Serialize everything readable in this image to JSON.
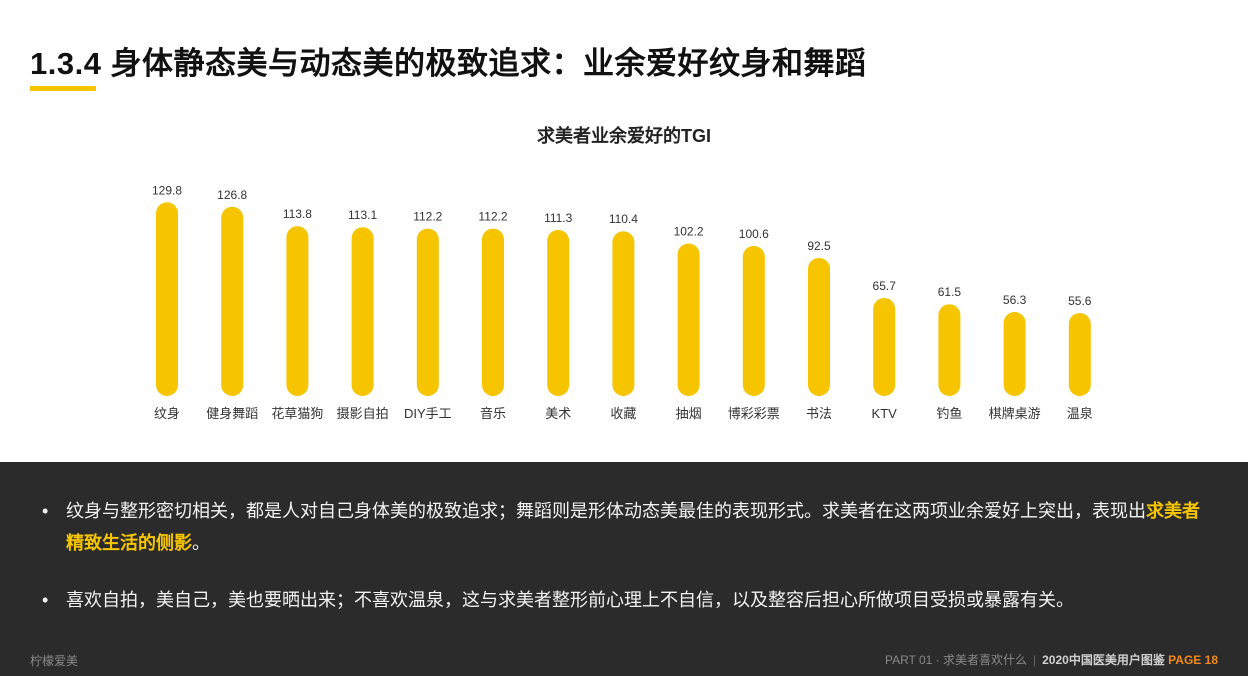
{
  "page": {
    "title": "1.3.4 身体静态美与动态美的极致追求：业余爱好纹身和舞蹈"
  },
  "chart_data": {
    "type": "bar",
    "title": "求美者业余爱好的TGI",
    "categories": [
      "纹身",
      "健身舞蹈",
      "花草猫狗",
      "摄影自拍",
      "DIY手工",
      "音乐",
      "美术",
      "收藏",
      "抽烟",
      "博彩彩票",
      "书法",
      "KTV",
      "钓鱼",
      "棋牌桌游",
      "温泉"
    ],
    "values": [
      129.8,
      126.8,
      113.8,
      113.1,
      112.2,
      112.2,
      111.3,
      110.4,
      102.2,
      100.6,
      92.5,
      65.7,
      61.5,
      56.3,
      55.6
    ],
    "value_labels": [
      "129.8",
      "126.8",
      "113.8",
      "113.1",
      "112.2",
      "112.2",
      "111.3",
      "110.4",
      "102.2",
      "100.6",
      "92.5",
      "65.7",
      "61.5",
      "56.3",
      "55.6"
    ],
    "ylim": [
      0,
      130
    ],
    "grid": false,
    "bar_color": "#f7c500"
  },
  "bullets": {
    "b1_text": "纹身与整形密切相关，都是人对自己身体美的极致追求；舞蹈则是形体动态美最佳的表现形式。求美者在这两项业余爱好上突出，表现出",
    "b1_highlight": "求美者精致生活的侧影",
    "b1_end": "。",
    "b2_text": "喜欢自拍，美自己，美也要晒出来；不喜欢温泉，这与求美者整形前心理上不自信，以及整容后担心所做项目受损或暴露有关。",
    "bullet_symbol": "•"
  },
  "footer": {
    "brand": "柠檬爱美",
    "part": "PART 01 · 求美者喜欢什么",
    "separator": "|",
    "report": "2020中国医美用户图鉴",
    "page_label": "PAGE",
    "page_number": "18"
  },
  "colors": {
    "accent": "#f7c500",
    "panel_bg": "#2b2b2b",
    "page_orange": "#f08a1c"
  }
}
